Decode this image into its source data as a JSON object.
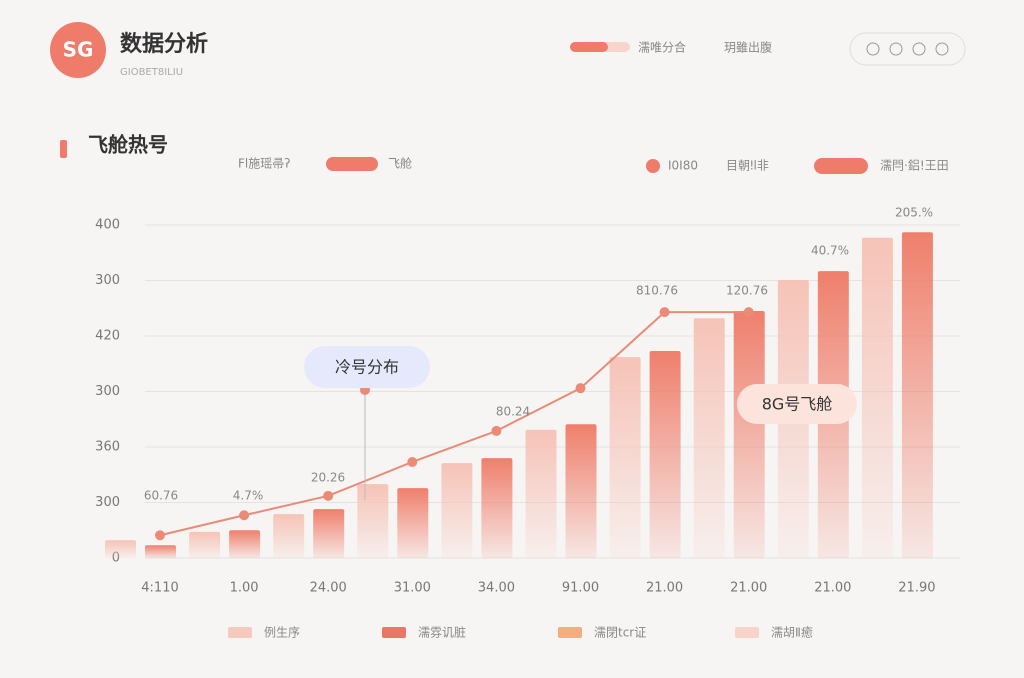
{
  "header": {
    "logo": "SG",
    "title": "数据分析",
    "subtitle": "GIOBET8ILIU",
    "nav": [
      "濡唯分合",
      "玥雖出腹"
    ]
  },
  "section": {
    "title": "飞舱热号"
  },
  "filters": [
    "Fl施瑶帚ʔ",
    "飞舱",
    "I0I80",
    "目朝ǃl非",
    "濡閂·鋁!王田"
  ],
  "chart_data": {
    "type": "bar",
    "categories": [
      "4:110",
      "1.00",
      "24.00",
      "31.00",
      "34.00",
      "91.00",
      "21.00",
      "21.00",
      "21.00",
      "21.90"
    ],
    "ylim": [
      0,
      600
    ],
    "yticks": [
      0,
      {
        "value": 100,
        "label": "300"
      },
      {
        "value": 200,
        "label": "360"
      },
      {
        "value": 300,
        "label": "300"
      },
      {
        "value": 400,
        "label": "420"
      },
      {
        "value": 500,
        "label": "300"
      },
      {
        "value": 600,
        "label": "400"
      }
    ],
    "grid": true,
    "series": [
      {
        "type": "bar",
        "color": "#f6c3b7",
        "values": [
          32,
          47,
          79,
          133,
          171,
          231,
          362,
          432,
          501,
          577
        ]
      },
      {
        "type": "bar",
        "color": "#ef7f6c",
        "values": [
          23,
          50,
          88,
          126,
          180,
          241,
          373,
          445,
          517,
          587
        ]
      },
      {
        "type": "line",
        "color": "#ec8a78",
        "values": [
          41,
          77,
          112,
          173,
          229,
          306,
          443,
          443,
          null,
          null
        ]
      }
    ],
    "annotations": [
      "60.76",
      "4.7%",
      "20.26",
      "80.24",
      "810.76",
      "120.76",
      "40.7%",
      "205.%"
    ],
    "callouts": [
      "冷号分布",
      "8G号飞舱"
    ],
    "legend": [
      {
        "name": "例生序",
        "color": "#f6c9bd"
      },
      {
        "name": "濡雰讥脏",
        "color": "#ec7666"
      },
      {
        "name": "濡閉tcr证",
        "color": "#f4ad80"
      },
      {
        "name": "濡胡Ⅱ癒",
        "color": "#f8d3ca"
      }
    ]
  }
}
